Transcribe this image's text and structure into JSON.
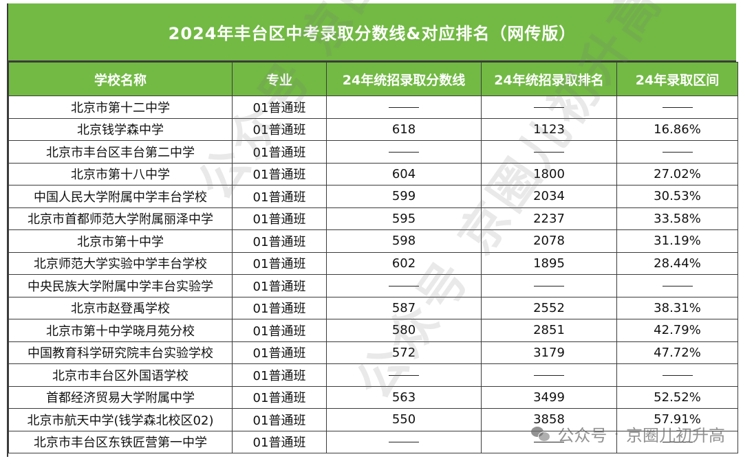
{
  "title": "2024年丰台区中考录取分数线&对应排名（网传版）",
  "headers": [
    "学校名称",
    "专业",
    "24年统招录取分数线",
    "24年统招录取排名",
    "24年录取区间"
  ],
  "dash": "——",
  "rows": [
    {
      "school": "北京市第十二中学",
      "major": "01普通班",
      "score": "——",
      "rank": "——",
      "range": "——"
    },
    {
      "school": "北京钱学森中学",
      "major": "01普通班",
      "score": "618",
      "rank": "1123",
      "range": "16.86%"
    },
    {
      "school": "北京市丰台区丰台第二中学",
      "major": "01普通班",
      "score": "——",
      "rank": "——",
      "range": "——"
    },
    {
      "school": "北京市第十八中学",
      "major": "01普通班",
      "score": "604",
      "rank": "1800",
      "range": "27.02%"
    },
    {
      "school": "中国人民大学附属中学丰台学校",
      "major": "01普通班",
      "score": "599",
      "rank": "2034",
      "range": "30.53%"
    },
    {
      "school": "北京市首都师范大学附属丽泽中学",
      "major": "01普通班",
      "score": "595",
      "rank": "2237",
      "range": "33.58%"
    },
    {
      "school": "北京市第十中学",
      "major": "01普通班",
      "score": "598",
      "rank": "2078",
      "range": "31.19%"
    },
    {
      "school": "北京师范大学实验中学丰台学校",
      "major": "01普通班",
      "score": "602",
      "rank": "1895",
      "range": "28.44%"
    },
    {
      "school": "中央民族大学附属中学丰台实验学",
      "major": "01普通班",
      "score": "——",
      "rank": "——",
      "range": "——"
    },
    {
      "school": "北京市赵登禹学校",
      "major": "01普通班",
      "score": "587",
      "rank": "2552",
      "range": "38.31%"
    },
    {
      "school": "北京市第十中学晓月苑分校",
      "major": "01普通班",
      "score": "580",
      "rank": "2851",
      "range": "42.79%"
    },
    {
      "school": "中国教育科学研究院丰台实验学校",
      "major": "01普通班",
      "score": "572",
      "rank": "3179",
      "range": "47.72%"
    },
    {
      "school": "北京市丰台区外国语学校",
      "major": "01普通班",
      "score": "——",
      "rank": "——",
      "range": "——"
    },
    {
      "school": "首都经济贸易大学附属中学",
      "major": "01普通班",
      "score": "563",
      "rank": "3499",
      "range": "52.52%"
    },
    {
      "school": "北京市航天中学(钱学森北校区02)",
      "major": "01普通班",
      "score": "550",
      "rank": "3858",
      "range": "57.91%"
    },
    {
      "school": "北京市丰台区东铁匠营第一中学",
      "major": "01普通班",
      "score": "——",
      "rank": "——",
      "range": "——"
    }
  ],
  "watermark": {
    "text_a": "公众号 京圈儿初升高",
    "text_b": "公众号 京圈儿初升高",
    "badge_prefix": "公众号",
    "badge_sep": "·",
    "badge_name": "京圈儿初升高",
    "badge_icon": "wechat-icon"
  },
  "colors": {
    "header_green": "#72ba44",
    "border": "#3b3b3b"
  }
}
